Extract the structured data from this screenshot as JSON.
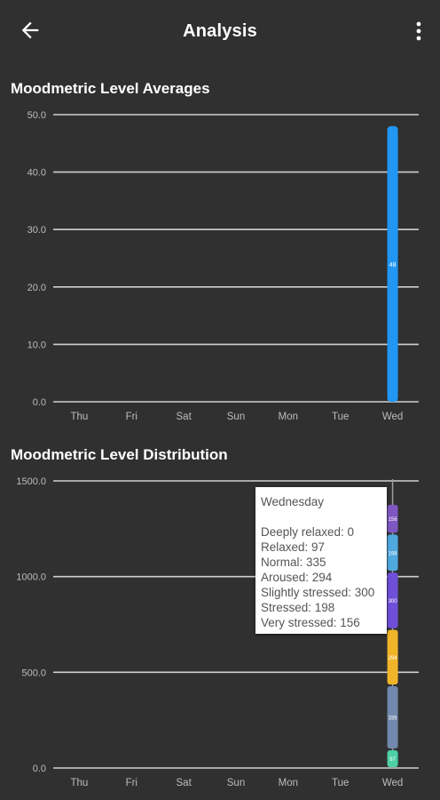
{
  "appbar": {
    "title": "Analysis",
    "back_icon": "arrow-left-icon",
    "menu_icon": "more-vert-icon"
  },
  "averages": {
    "section_title": "Moodmetric Level Averages",
    "chart_data": {
      "type": "bar",
      "categories": [
        "Thu",
        "Fri",
        "Sat",
        "Sun",
        "Mon",
        "Tue",
        "Wed"
      ],
      "values": [
        0,
        0,
        0,
        0,
        0,
        0,
        48
      ],
      "value_labels": [
        "",
        "",
        "",
        "",
        "",
        "",
        "48"
      ],
      "ylim": [
        0,
        50
      ],
      "yticks": [
        "0.0",
        "10.0",
        "20.0",
        "30.0",
        "40.0",
        "50.0"
      ],
      "grid": true,
      "bar_color": "#2196F3"
    }
  },
  "distribution": {
    "section_title": "Moodmetric Level Distribution",
    "chart_data": {
      "type": "bar",
      "stacked": true,
      "categories": [
        "Thu",
        "Fri",
        "Sat",
        "Sun",
        "Mon",
        "Tue",
        "Wed"
      ],
      "ylim": [
        0,
        1500
      ],
      "yticks": [
        "0.0",
        "500.0",
        "1000.0",
        "1500.0"
      ],
      "grid": true,
      "series": [
        {
          "name": "Deeply relaxed",
          "color": "#1E88E5",
          "values": [
            0,
            0,
            0,
            0,
            0,
            0,
            0
          ]
        },
        {
          "name": "Relaxed",
          "color": "#4DD0A6",
          "values": [
            0,
            0,
            0,
            0,
            0,
            0,
            97
          ]
        },
        {
          "name": "Normal",
          "color": "#7288AC",
          "values": [
            0,
            0,
            0,
            0,
            0,
            0,
            335
          ]
        },
        {
          "name": "Aroused",
          "color": "#F0B429",
          "values": [
            0,
            0,
            0,
            0,
            0,
            0,
            294
          ]
        },
        {
          "name": "Slightly stressed",
          "color": "#6F4FD8",
          "values": [
            0,
            0,
            0,
            0,
            0,
            0,
            300
          ]
        },
        {
          "name": "Stressed",
          "color": "#4FA8DE",
          "values": [
            0,
            0,
            0,
            0,
            0,
            0,
            198
          ]
        },
        {
          "name": "Very stressed",
          "color": "#7E57C2",
          "values": [
            0,
            0,
            0,
            0,
            0,
            0,
            156
          ]
        }
      ],
      "segment_labels": [
        "",
        "97",
        "335",
        "294",
        "300",
        "198",
        "156"
      ]
    },
    "tooltip": {
      "day": "Wednesday",
      "lines": [
        "Deeply relaxed: 0",
        "Relaxed: 97",
        "Normal: 335",
        "Aroused: 294",
        "Slightly stressed: 300",
        "Stressed: 198",
        "Very stressed: 156"
      ]
    }
  }
}
